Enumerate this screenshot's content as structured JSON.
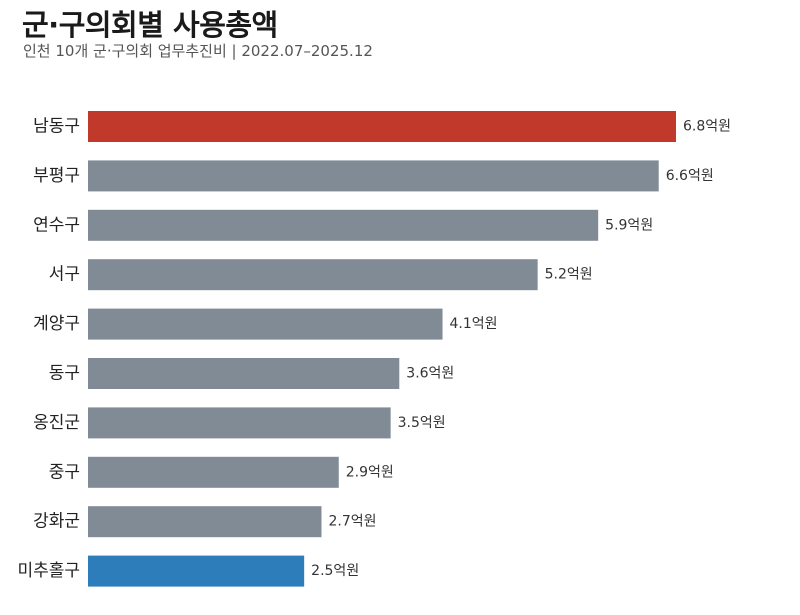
{
  "chart_data": {
    "type": "bar",
    "orientation": "horizontal",
    "title": "군·구의회별 사용총액",
    "subtitle": "인천 10개 군·구의회 업무추진비 | 2022.07–2025.12",
    "categories": [
      "남동구",
      "부평구",
      "연수구",
      "서구",
      "계양구",
      "동구",
      "옹진군",
      "중구",
      "강화군",
      "미추홀구"
    ],
    "values": [
      6.8,
      6.6,
      5.9,
      5.2,
      4.1,
      3.6,
      3.5,
      2.9,
      2.7,
      2.5
    ],
    "value_labels": [
      "6.8억원",
      "6.6억원",
      "5.9억원",
      "5.2억원",
      "4.1억원",
      "3.6억원",
      "3.5억원",
      "2.9억원",
      "2.7억원",
      "2.5억원"
    ],
    "unit": "억원",
    "xlim": [
      0,
      6.8
    ],
    "grid": false,
    "colors": {
      "default": "#808b96",
      "highest": "#c0392b",
      "lowest": "#2e7dbb"
    },
    "bar_colors": [
      "#c0392b",
      "#808b96",
      "#808b96",
      "#808b96",
      "#808b96",
      "#808b96",
      "#808b96",
      "#808b96",
      "#808b96",
      "#2e7dbb"
    ]
  }
}
